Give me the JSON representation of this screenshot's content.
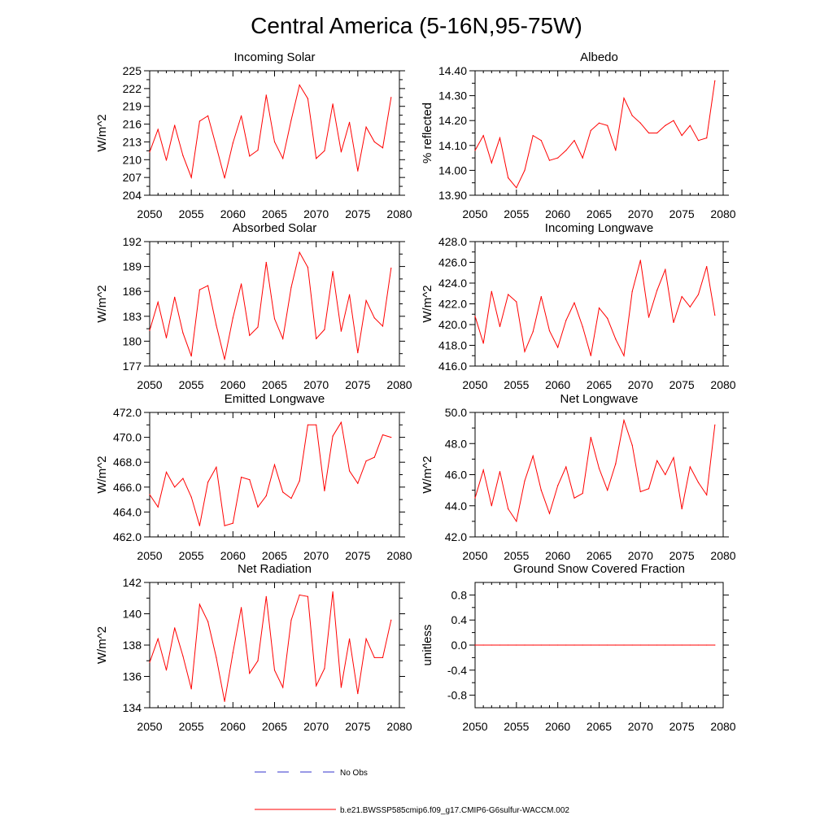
{
  "title": "Central America (5-16N,95-75W)",
  "legend": {
    "obs_label": "No Obs",
    "model_label": "b.e21.BWSSP585cmip6.f09_g17.CMIP6-G6sulfur-WACCM.002",
    "obs_color": "#3333cc",
    "model_color": "#ff0000"
  },
  "chart_data": [
    {
      "type": "line",
      "title": "Incoming Solar",
      "ylabel": "W/m^2",
      "xlim": [
        2050,
        2080
      ],
      "ylim": [
        204,
        225
      ],
      "yticks": [
        204,
        207,
        210,
        213,
        216,
        219,
        222,
        225
      ],
      "ytick_labels": [
        "204",
        "207",
        "210",
        "213",
        "216",
        "219",
        "222",
        "225"
      ],
      "xticks": [
        2050,
        2055,
        2060,
        2065,
        2070,
        2075,
        2080
      ],
      "xtick_labels": [
        "2050",
        "2055",
        "2060",
        "2065",
        "2070",
        "2075",
        "2080"
      ],
      "color": "#ff0000",
      "x": [
        2050,
        2051,
        2052,
        2053,
        2054,
        2055,
        2056,
        2057,
        2058,
        2059,
        2060,
        2061,
        2062,
        2063,
        2064,
        2065,
        2066,
        2067,
        2068,
        2069,
        2070,
        2071,
        2072,
        2073,
        2074,
        2075,
        2076,
        2077,
        2078,
        2079
      ],
      "y": [
        211.3,
        215.1,
        209.9,
        215.8,
        210.7,
        207.0,
        216.5,
        217.4,
        212.2,
        206.9,
        212.8,
        217.4,
        210.6,
        211.6,
        220.9,
        213.0,
        210.2,
        216.7,
        222.6,
        220.3,
        210.2,
        211.5,
        219.4,
        211.3,
        216.3,
        208.1,
        215.5,
        213.0,
        212.0,
        220.5
      ]
    },
    {
      "type": "line",
      "title": "Albedo",
      "ylabel": "% reflected",
      "xlim": [
        2050,
        2080
      ],
      "ylim": [
        13.9,
        14.4
      ],
      "yticks": [
        13.9,
        14.0,
        14.1,
        14.2,
        14.3,
        14.4
      ],
      "ytick_labels": [
        "13.90",
        "14.00",
        "14.10",
        "14.20",
        "14.30",
        "14.40"
      ],
      "xticks": [
        2050,
        2055,
        2060,
        2065,
        2070,
        2075,
        2080
      ],
      "xtick_labels": [
        "2050",
        "2055",
        "2060",
        "2065",
        "2070",
        "2075",
        "2080"
      ],
      "color": "#ff0000",
      "x": [
        2050,
        2051,
        2052,
        2053,
        2054,
        2055,
        2056,
        2057,
        2058,
        2059,
        2060,
        2061,
        2062,
        2063,
        2064,
        2065,
        2066,
        2067,
        2068,
        2069,
        2070,
        2071,
        2072,
        2073,
        2074,
        2075,
        2076,
        2077,
        2078,
        2079
      ],
      "y": [
        14.08,
        14.14,
        14.03,
        14.13,
        13.97,
        13.93,
        14.0,
        14.14,
        14.12,
        14.04,
        14.05,
        14.08,
        14.12,
        14.05,
        14.16,
        14.19,
        14.18,
        14.08,
        14.29,
        14.22,
        14.19,
        14.15,
        14.15,
        14.18,
        14.2,
        14.14,
        14.18,
        14.12,
        14.13,
        14.36
      ]
    },
    {
      "type": "line",
      "title": "Absorbed Solar",
      "ylabel": "W/m^2",
      "xlim": [
        2050,
        2080
      ],
      "ylim": [
        177,
        192
      ],
      "yticks": [
        177,
        180,
        183,
        186,
        189,
        192
      ],
      "ytick_labels": [
        "177",
        "180",
        "183",
        "186",
        "189",
        "192"
      ],
      "xticks": [
        2050,
        2055,
        2060,
        2065,
        2070,
        2075,
        2080
      ],
      "xtick_labels": [
        "2050",
        "2055",
        "2060",
        "2065",
        "2070",
        "2075",
        "2080"
      ],
      "color": "#ff0000",
      "x": [
        2050,
        2051,
        2052,
        2053,
        2054,
        2055,
        2056,
        2057,
        2058,
        2059,
        2060,
        2061,
        2062,
        2063,
        2064,
        2065,
        2066,
        2067,
        2068,
        2069,
        2070,
        2071,
        2072,
        2073,
        2074,
        2075,
        2076,
        2077,
        2078,
        2079
      ],
      "y": [
        181.3,
        184.7,
        180.4,
        185.3,
        181.0,
        178.2,
        186.2,
        186.7,
        181.9,
        177.8,
        182.8,
        186.9,
        180.7,
        181.7,
        189.5,
        182.7,
        180.3,
        186.5,
        190.7,
        188.9,
        180.3,
        181.4,
        188.4,
        181.2,
        185.6,
        178.6,
        184.9,
        182.8,
        181.8,
        188.8
      ]
    },
    {
      "type": "line",
      "title": "Incoming Longwave",
      "ylabel": "W/m^2",
      "xlim": [
        2050,
        2080
      ],
      "ylim": [
        416.0,
        428.0
      ],
      "yticks": [
        416,
        418,
        420,
        422,
        424,
        426,
        428
      ],
      "ytick_labels": [
        "416.0",
        "418.0",
        "420.0",
        "422.0",
        "424.0",
        "426.0",
        "428.0"
      ],
      "xticks": [
        2050,
        2055,
        2060,
        2065,
        2070,
        2075,
        2080
      ],
      "xtick_labels": [
        "2050",
        "2055",
        "2060",
        "2065",
        "2070",
        "2075",
        "2080"
      ],
      "color": "#ff0000",
      "x": [
        2050,
        2051,
        2052,
        2053,
        2054,
        2055,
        2056,
        2057,
        2058,
        2059,
        2060,
        2061,
        2062,
        2063,
        2064,
        2065,
        2066,
        2067,
        2068,
        2069,
        2070,
        2071,
        2072,
        2073,
        2074,
        2075,
        2076,
        2077,
        2078,
        2079
      ],
      "y": [
        420.8,
        418.2,
        423.2,
        419.8,
        422.9,
        422.2,
        417.4,
        419.3,
        422.7,
        419.4,
        417.8,
        420.4,
        422.1,
        419.8,
        417.0,
        421.6,
        420.6,
        418.6,
        417.0,
        423.2,
        426.2,
        420.7,
        423.3,
        425.3,
        420.2,
        422.7,
        421.7,
        422.9,
        425.6,
        420.9
      ]
    },
    {
      "type": "line",
      "title": "Emitted Longwave",
      "ylabel": "W/m^2",
      "xlim": [
        2050,
        2080
      ],
      "ylim": [
        462.0,
        472.0
      ],
      "yticks": [
        462,
        464,
        466,
        468,
        470,
        472
      ],
      "ytick_labels": [
        "462.0",
        "464.0",
        "466.0",
        "468.0",
        "470.0",
        "472.0"
      ],
      "xticks": [
        2050,
        2055,
        2060,
        2065,
        2070,
        2075,
        2080
      ],
      "xtick_labels": [
        "2050",
        "2055",
        "2060",
        "2065",
        "2070",
        "2075",
        "2080"
      ],
      "color": "#ff0000",
      "x": [
        2050,
        2051,
        2052,
        2053,
        2054,
        2055,
        2056,
        2057,
        2058,
        2059,
        2060,
        2061,
        2062,
        2063,
        2064,
        2065,
        2066,
        2067,
        2068,
        2069,
        2070,
        2071,
        2072,
        2073,
        2074,
        2075,
        2076,
        2077,
        2078,
        2079
      ],
      "y": [
        465.4,
        464.4,
        467.2,
        466.0,
        466.7,
        465.2,
        462.9,
        466.4,
        467.6,
        462.9,
        463.1,
        466.8,
        466.6,
        464.4,
        465.3,
        467.8,
        465.6,
        465.1,
        466.5,
        471.0,
        471.0,
        465.7,
        470.1,
        471.2,
        467.3,
        466.3,
        468.1,
        468.4,
        470.2,
        470.0
      ]
    },
    {
      "type": "line",
      "title": "Net Longwave",
      "ylabel": "W/m^2",
      "xlim": [
        2050,
        2080
      ],
      "ylim": [
        42.0,
        50.0
      ],
      "yticks": [
        42,
        44,
        46,
        48,
        50
      ],
      "ytick_labels": [
        "42.0",
        "44.0",
        "46.0",
        "48.0",
        "50.0"
      ],
      "xticks": [
        2050,
        2055,
        2060,
        2065,
        2070,
        2075,
        2080
      ],
      "xtick_labels": [
        "2050",
        "2055",
        "2060",
        "2065",
        "2070",
        "2075",
        "2080"
      ],
      "color": "#ff0000",
      "x": [
        2050,
        2051,
        2052,
        2053,
        2054,
        2055,
        2056,
        2057,
        2058,
        2059,
        2060,
        2061,
        2062,
        2063,
        2064,
        2065,
        2066,
        2067,
        2068,
        2069,
        2070,
        2071,
        2072,
        2073,
        2074,
        2075,
        2076,
        2077,
        2078,
        2079
      ],
      "y": [
        44.5,
        46.3,
        44.0,
        46.2,
        43.8,
        43.0,
        45.6,
        47.2,
        45.0,
        43.5,
        45.3,
        46.5,
        44.5,
        44.8,
        48.4,
        46.4,
        45.0,
        46.7,
        49.5,
        47.9,
        44.9,
        45.1,
        46.9,
        46.0,
        47.1,
        43.8,
        46.5,
        45.5,
        44.7,
        49.2
      ]
    },
    {
      "type": "line",
      "title": "Net Radiation",
      "ylabel": "W/m^2",
      "xlim": [
        2050,
        2080
      ],
      "ylim": [
        134,
        142
      ],
      "yticks": [
        134,
        136,
        138,
        140,
        142
      ],
      "ytick_labels": [
        "134",
        "136",
        "138",
        "140",
        "142"
      ],
      "xticks": [
        2050,
        2055,
        2060,
        2065,
        2070,
        2075,
        2080
      ],
      "xtick_labels": [
        "2050",
        "2055",
        "2060",
        "2065",
        "2070",
        "2075",
        "2080"
      ],
      "color": "#ff0000",
      "x": [
        2050,
        2051,
        2052,
        2053,
        2054,
        2055,
        2056,
        2057,
        2058,
        2059,
        2060,
        2061,
        2062,
        2063,
        2064,
        2065,
        2066,
        2067,
        2068,
        2069,
        2070,
        2071,
        2072,
        2073,
        2074,
        2075,
        2076,
        2077,
        2078,
        2079
      ],
      "y": [
        136.9,
        138.4,
        136.4,
        139.1,
        137.3,
        135.2,
        140.6,
        139.5,
        137.2,
        134.4,
        137.5,
        140.4,
        136.2,
        137.0,
        141.1,
        136.4,
        135.3,
        139.6,
        141.2,
        141.1,
        135.4,
        136.5,
        141.4,
        135.3,
        138.4,
        134.9,
        138.4,
        137.2,
        137.2,
        139.6
      ]
    },
    {
      "type": "line",
      "title": "Ground Snow Covered Fraction",
      "ylabel": "unitless",
      "xlim": [
        2050,
        2080
      ],
      "ylim": [
        -1.0,
        1.0
      ],
      "yticks": [
        -0.8,
        -0.4,
        0.0,
        0.4,
        0.8
      ],
      "ytick_labels": [
        "-0.8",
        "-0.4",
        "0.0",
        "0.4",
        "0.8"
      ],
      "xticks": [
        2050,
        2055,
        2060,
        2065,
        2070,
        2075,
        2080
      ],
      "xtick_labels": [
        "2050",
        "2055",
        "2060",
        "2065",
        "2070",
        "2075",
        "2080"
      ],
      "color": "#ff0000",
      "x": [
        2050,
        2051,
        2052,
        2053,
        2054,
        2055,
        2056,
        2057,
        2058,
        2059,
        2060,
        2061,
        2062,
        2063,
        2064,
        2065,
        2066,
        2067,
        2068,
        2069,
        2070,
        2071,
        2072,
        2073,
        2074,
        2075,
        2076,
        2077,
        2078,
        2079
      ],
      "y": [
        0,
        0,
        0,
        0,
        0,
        0,
        0,
        0,
        0,
        0,
        0,
        0,
        0,
        0,
        0,
        0,
        0,
        0,
        0,
        0,
        0,
        0,
        0,
        0,
        0,
        0,
        0,
        0,
        0,
        0
      ]
    }
  ]
}
